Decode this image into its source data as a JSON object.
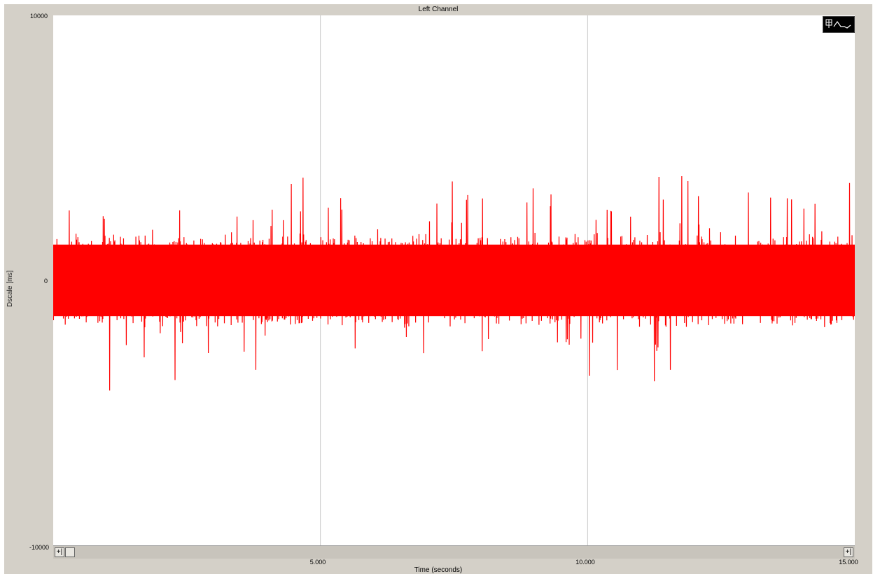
{
  "title": "Left Channel",
  "chart_data": {
    "type": "line",
    "title": "Left Channel",
    "xlabel": "Time (seconds)",
    "ylabel": "Dscale [ms]",
    "xlim": [
      0,
      15.0
    ],
    "ylim": [
      -10000,
      10000
    ],
    "x_ticks": [
      "5.000",
      "10.000",
      "15.000"
    ],
    "y_ticks": [
      "10000",
      "0",
      "-10000"
    ],
    "grid": "vertical",
    "series": [
      {
        "color": "#ff0000",
        "signal": "noise",
        "amplitude_typical": 1800,
        "amplitude_peak": 4300,
        "mean": 0
      }
    ]
  },
  "controls": {
    "legend_button_icon": "waveform-toggle-icon",
    "scroll_left_label": "+|",
    "scroll_right_label": "+|"
  },
  "colors": {
    "frame": "#d4d0c8",
    "signal": "#ff0000",
    "grid": "#c8c8c8",
    "plot_bg": "#ffffff"
  }
}
